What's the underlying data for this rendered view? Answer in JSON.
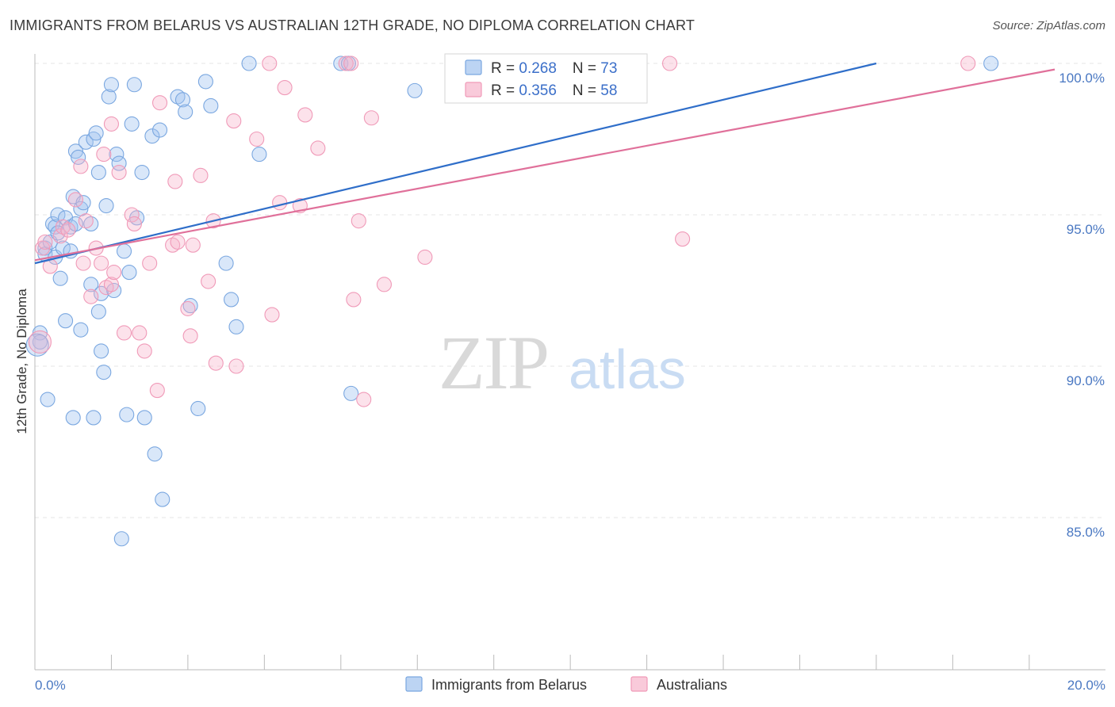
{
  "header": {
    "title": "IMMIGRANTS FROM BELARUS VS AUSTRALIAN 12TH GRADE, NO DIPLOMA CORRELATION CHART",
    "source": "Source: ZipAtlas.com"
  },
  "watermark": {
    "zip": "ZIP",
    "atlas": "atlas"
  },
  "chart_data": {
    "type": "scatter",
    "title": "IMMIGRANTS FROM BELARUS VS AUSTRALIAN 12TH GRADE, NO DIPLOMA CORRELATION CHART",
    "xlabel": "",
    "ylabel": "12th Grade, No Diploma",
    "xlim": [
      0,
      20
    ],
    "ylim": [
      80.5,
      100.8
    ],
    "x_tick_labels": {
      "min": "0.0%",
      "max": "20.0%"
    },
    "y_ticks": [
      {
        "value": 100,
        "label": "100.0%"
      },
      {
        "value": 95,
        "label": "95.0%"
      },
      {
        "value": 90,
        "label": "90.0%"
      },
      {
        "value": 85,
        "label": "85.0%"
      }
    ],
    "grid": true,
    "legend": {
      "position": "top-center",
      "entries": [
        {
          "series": "Immigrants from Belarus",
          "r_label": "R = ",
          "r": "0.268",
          "n_label": "N = ",
          "n": "73"
        },
        {
          "series": "Australians",
          "r_label": "R = ",
          "r": "0.356",
          "n_label": "N = ",
          "n": "58"
        }
      ]
    },
    "series": [
      {
        "name": "Immigrants from Belarus",
        "color": "#7aa7e0",
        "line_color": "#2f6ec9",
        "trend": {
          "x": [
            0.0,
            16.5
          ],
          "y": [
            93.4,
            100.0
          ]
        },
        "points": [
          [
            0.1,
            91.1
          ],
          [
            0.1,
            90.8
          ],
          [
            0.2,
            93.9
          ],
          [
            0.2,
            93.7
          ],
          [
            0.3,
            94.1
          ],
          [
            0.25,
            88.9
          ],
          [
            0.35,
            94.7
          ],
          [
            0.4,
            94.6
          ],
          [
            0.4,
            93.6
          ],
          [
            0.45,
            94.4
          ],
          [
            0.45,
            95.0
          ],
          [
            0.5,
            92.9
          ],
          [
            0.55,
            93.9
          ],
          [
            0.6,
            94.9
          ],
          [
            0.6,
            91.5
          ],
          [
            0.7,
            93.8
          ],
          [
            0.7,
            94.6
          ],
          [
            0.75,
            95.6
          ],
          [
            0.75,
            88.3
          ],
          [
            0.8,
            94.7
          ],
          [
            0.8,
            97.1
          ],
          [
            0.85,
            96.9
          ],
          [
            0.9,
            95.2
          ],
          [
            0.9,
            91.2
          ],
          [
            0.95,
            95.4
          ],
          [
            1.0,
            97.4
          ],
          [
            1.1,
            92.7
          ],
          [
            1.1,
            94.7
          ],
          [
            1.15,
            97.5
          ],
          [
            1.15,
            88.3
          ],
          [
            1.2,
            97.7
          ],
          [
            1.25,
            91.8
          ],
          [
            1.25,
            96.4
          ],
          [
            1.3,
            92.4
          ],
          [
            1.3,
            90.5
          ],
          [
            1.35,
            89.8
          ],
          [
            1.4,
            95.3
          ],
          [
            1.45,
            98.9
          ],
          [
            1.5,
            99.3
          ],
          [
            1.55,
            92.5
          ],
          [
            1.6,
            97.0
          ],
          [
            1.65,
            96.7
          ],
          [
            1.7,
            84.3
          ],
          [
            1.75,
            93.8
          ],
          [
            1.8,
            88.4
          ],
          [
            1.85,
            93.1
          ],
          [
            1.9,
            98.0
          ],
          [
            1.95,
            99.3
          ],
          [
            2.0,
            94.9
          ],
          [
            2.1,
            96.4
          ],
          [
            2.15,
            88.3
          ],
          [
            2.3,
            97.6
          ],
          [
            2.35,
            87.1
          ],
          [
            2.45,
            97.8
          ],
          [
            2.5,
            85.6
          ],
          [
            2.8,
            98.9
          ],
          [
            2.9,
            98.8
          ],
          [
            2.95,
            98.4
          ],
          [
            3.05,
            92.0
          ],
          [
            3.2,
            88.6
          ],
          [
            3.35,
            99.4
          ],
          [
            3.45,
            98.6
          ],
          [
            3.75,
            93.4
          ],
          [
            3.85,
            92.2
          ],
          [
            3.95,
            91.3
          ],
          [
            4.2,
            100.0
          ],
          [
            4.4,
            97.0
          ],
          [
            6.0,
            100.0
          ],
          [
            6.15,
            100.0
          ],
          [
            6.2,
            89.1
          ],
          [
            7.45,
            99.1
          ],
          [
            18.75,
            100.0
          ],
          [
            0.05,
            90.7
          ]
        ]
      },
      {
        "name": "Australians",
        "color": "#f09ab8",
        "line_color": "#e0709a",
        "trend": {
          "x": [
            0.0,
            20.0
          ],
          "y": [
            93.5,
            99.8
          ]
        },
        "points": [
          [
            0.1,
            90.8
          ],
          [
            0.15,
            93.9
          ],
          [
            0.2,
            94.1
          ],
          [
            0.3,
            93.3
          ],
          [
            0.5,
            94.3
          ],
          [
            0.55,
            94.6
          ],
          [
            0.65,
            94.5
          ],
          [
            0.8,
            95.5
          ],
          [
            0.9,
            96.6
          ],
          [
            0.95,
            93.4
          ],
          [
            1.0,
            94.8
          ],
          [
            1.1,
            92.3
          ],
          [
            1.2,
            93.9
          ],
          [
            1.3,
            93.4
          ],
          [
            1.35,
            97.0
          ],
          [
            1.4,
            92.6
          ],
          [
            1.5,
            92.7
          ],
          [
            1.5,
            98.0
          ],
          [
            1.55,
            93.1
          ],
          [
            1.65,
            96.4
          ],
          [
            1.75,
            91.1
          ],
          [
            1.9,
            95.0
          ],
          [
            1.95,
            94.7
          ],
          [
            2.05,
            91.1
          ],
          [
            2.15,
            90.5
          ],
          [
            2.25,
            93.4
          ],
          [
            2.4,
            89.2
          ],
          [
            2.45,
            98.7
          ],
          [
            2.7,
            94.0
          ],
          [
            2.75,
            96.1
          ],
          [
            2.8,
            94.1
          ],
          [
            3.0,
            91.9
          ],
          [
            3.05,
            91.0
          ],
          [
            3.1,
            94.0
          ],
          [
            3.25,
            96.3
          ],
          [
            3.4,
            92.8
          ],
          [
            3.5,
            94.8
          ],
          [
            3.55,
            90.1
          ],
          [
            3.9,
            98.1
          ],
          [
            3.95,
            90.0
          ],
          [
            4.35,
            97.5
          ],
          [
            4.6,
            100.0
          ],
          [
            4.65,
            91.7
          ],
          [
            4.8,
            95.4
          ],
          [
            4.9,
            99.2
          ],
          [
            5.2,
            95.3
          ],
          [
            5.3,
            98.3
          ],
          [
            5.55,
            97.2
          ],
          [
            6.1,
            100.0
          ],
          [
            6.2,
            100.0
          ],
          [
            6.25,
            92.2
          ],
          [
            6.35,
            94.8
          ],
          [
            6.45,
            88.9
          ],
          [
            6.6,
            98.2
          ],
          [
            6.85,
            92.7
          ],
          [
            7.65,
            93.6
          ],
          [
            12.45,
            100.0
          ],
          [
            12.7,
            94.2
          ]
        ]
      }
    ],
    "extra_point": {
      "series": "Australians",
      "x": 18.3,
      "y": 100.0
    }
  }
}
